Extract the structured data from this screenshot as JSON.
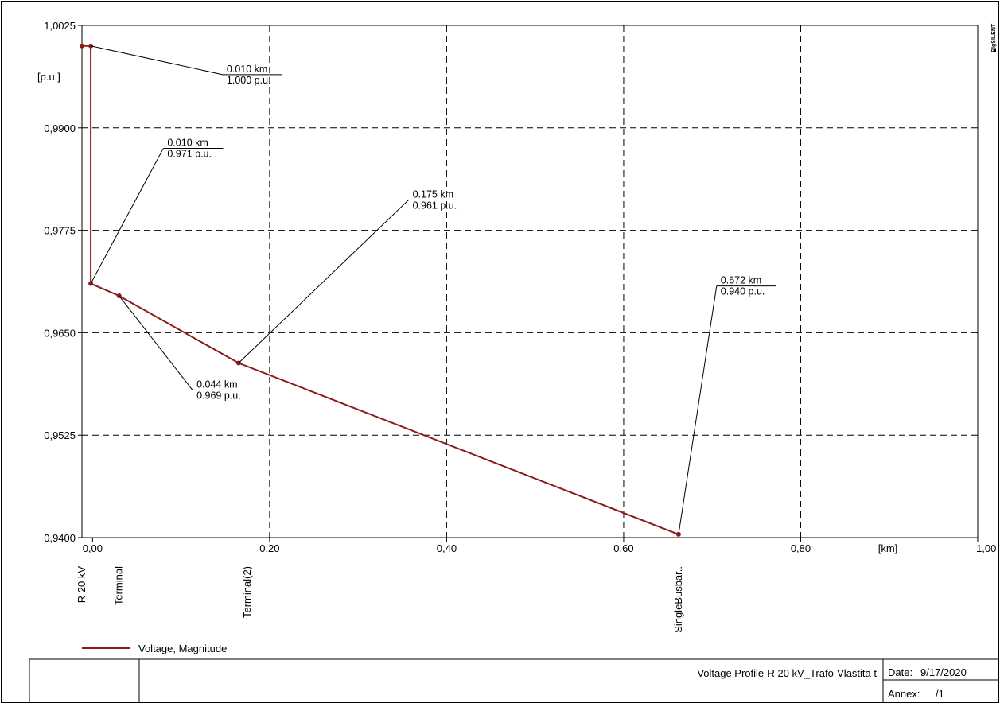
{
  "chart_data": {
    "type": "line",
    "xlim": [
      -0.012,
      1.0
    ],
    "ylim": [
      0.94,
      1.0025
    ],
    "x_ticks": [
      {
        "value": 0.0,
        "label": "0,00"
      },
      {
        "value": 0.2,
        "label": "0,20"
      },
      {
        "value": 0.4,
        "label": "0,40"
      },
      {
        "value": 0.6,
        "label": "0,60"
      },
      {
        "value": 0.8,
        "label": "0,80"
      },
      {
        "value": 1.0,
        "label": "1,00"
      }
    ],
    "y_ticks": [
      {
        "value": 1.0025,
        "label": "1,0025"
      },
      {
        "value": 0.99,
        "label": "0,9900"
      },
      {
        "value": 0.9775,
        "label": "0,9775"
      },
      {
        "value": 0.965,
        "label": "0,9650"
      },
      {
        "value": 0.9525,
        "label": "0,9525"
      },
      {
        "value": 0.94,
        "label": "0,9400"
      }
    ],
    "x_unit": "[km]",
    "y_unit": "[p.u.]",
    "grid": true,
    "series": [
      {
        "name": "Voltage, Magnitude",
        "color": "#8b1a1a",
        "points": [
          {
            "x": -0.012,
            "y": 1.0
          },
          {
            "x": -0.002,
            "y": 1.0
          },
          {
            "x": -0.002,
            "y": 0.971
          },
          {
            "x": 0.03,
            "y": 0.9695
          },
          {
            "x": 0.165,
            "y": 0.9613
          },
          {
            "x": 0.662,
            "y": 0.9404
          }
        ]
      }
    ],
    "annotations": [
      {
        "line1": "0.010 km",
        "line2": "1.000 p.u.",
        "point": {
          "x": -0.002,
          "y": 1.0
        },
        "label_at": {
          "x": 0.147,
          "y": 0.9965
        }
      },
      {
        "line1": "0.010 km",
        "line2": "0.971 p.u.",
        "point": {
          "x": -0.002,
          "y": 0.971
        },
        "label_at": {
          "x": 0.08,
          "y": 0.9875
        }
      },
      {
        "line1": "0.044 km",
        "line2": "0.969 p.u.",
        "point": {
          "x": 0.03,
          "y": 0.9695
        },
        "label_at": {
          "x": 0.113,
          "y": 0.958
        }
      },
      {
        "line1": "0.175 km",
        "line2": "0.961 p.u.",
        "point": {
          "x": 0.165,
          "y": 0.9613
        },
        "label_at": {
          "x": 0.357,
          "y": 0.9812
        }
      },
      {
        "line1": "0.672 km",
        "line2": "0.940 p.u.",
        "point": {
          "x": 0.662,
          "y": 0.9404
        },
        "label_at": {
          "x": 0.705,
          "y": 0.9707
        }
      }
    ],
    "categories": [
      {
        "x": -0.012,
        "label": "R 20 kV"
      },
      {
        "x": 0.03,
        "label": "Terminal"
      },
      {
        "x": 0.175,
        "label": "Terminal(2)"
      },
      {
        "x": 0.662,
        "label": "SingleBusbar.."
      }
    ],
    "legend": {
      "label": "Voltage, Magnitude",
      "placement": "bottom-left"
    },
    "watermark": "DIgSILENT"
  },
  "footer": {
    "title": "Voltage Profile-R 20 kV_Trafo-Vlastita t",
    "date_label": "Date:",
    "date_value": "9/17/2020",
    "annex_label": "Annex:",
    "annex_value": "/1"
  }
}
